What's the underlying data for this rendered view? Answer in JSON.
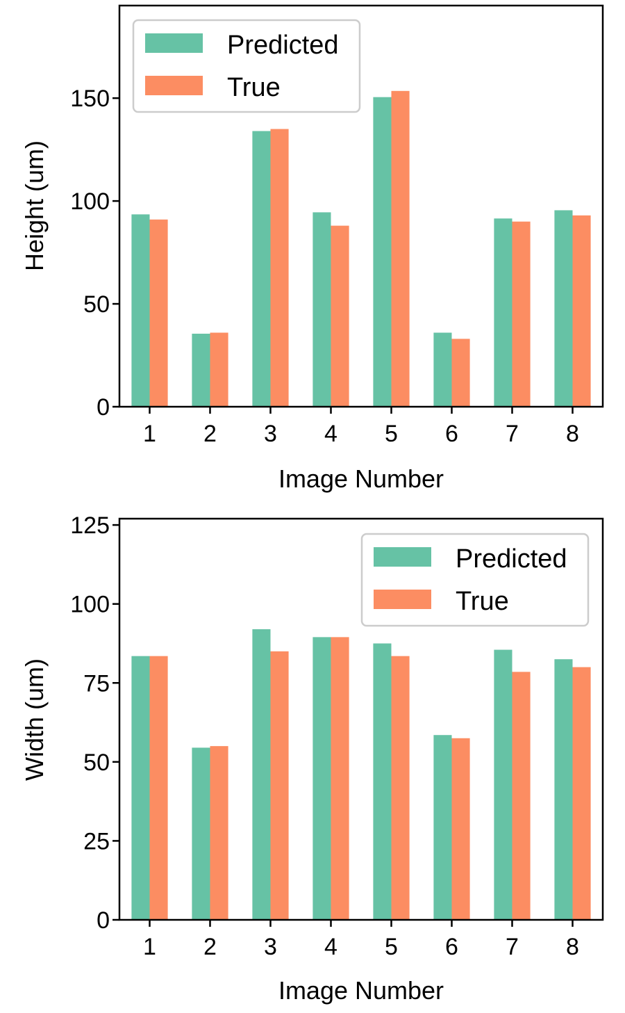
{
  "chart_data": [
    {
      "type": "bar",
      "categories": [
        "1",
        "2",
        "3",
        "4",
        "5",
        "6",
        "7",
        "8"
      ],
      "xlabel": "Image Number",
      "ylabel": "Height (um)",
      "ylim": [
        0,
        195
      ],
      "yticks": [
        0,
        50,
        100,
        150
      ],
      "legend_position": "upper-left",
      "series": [
        {
          "name": "Predicted",
          "color": "#66c2a5",
          "values": [
            93.5,
            35.5,
            134,
            94.5,
            150.5,
            36,
            91.5,
            95.5
          ]
        },
        {
          "name": "True",
          "color": "#fc8d62",
          "values": [
            91,
            36,
            135,
            88,
            153.5,
            33,
            90,
            93
          ]
        }
      ]
    },
    {
      "type": "bar",
      "categories": [
        "1",
        "2",
        "3",
        "4",
        "5",
        "6",
        "7",
        "8"
      ],
      "xlabel": "Image Number",
      "ylabel": "Width (um)",
      "ylim": [
        0,
        127
      ],
      "yticks": [
        0,
        25,
        50,
        75,
        100,
        125
      ],
      "legend_position": "upper-right",
      "series": [
        {
          "name": "Predicted",
          "color": "#66c2a5",
          "values": [
            83.5,
            54.5,
            92,
            89.5,
            87.5,
            58.5,
            85.5,
            82.5
          ]
        },
        {
          "name": "True",
          "color": "#fc8d62",
          "values": [
            83.5,
            55,
            85,
            89.5,
            83.5,
            57.5,
            78.5,
            80
          ]
        }
      ]
    }
  ]
}
